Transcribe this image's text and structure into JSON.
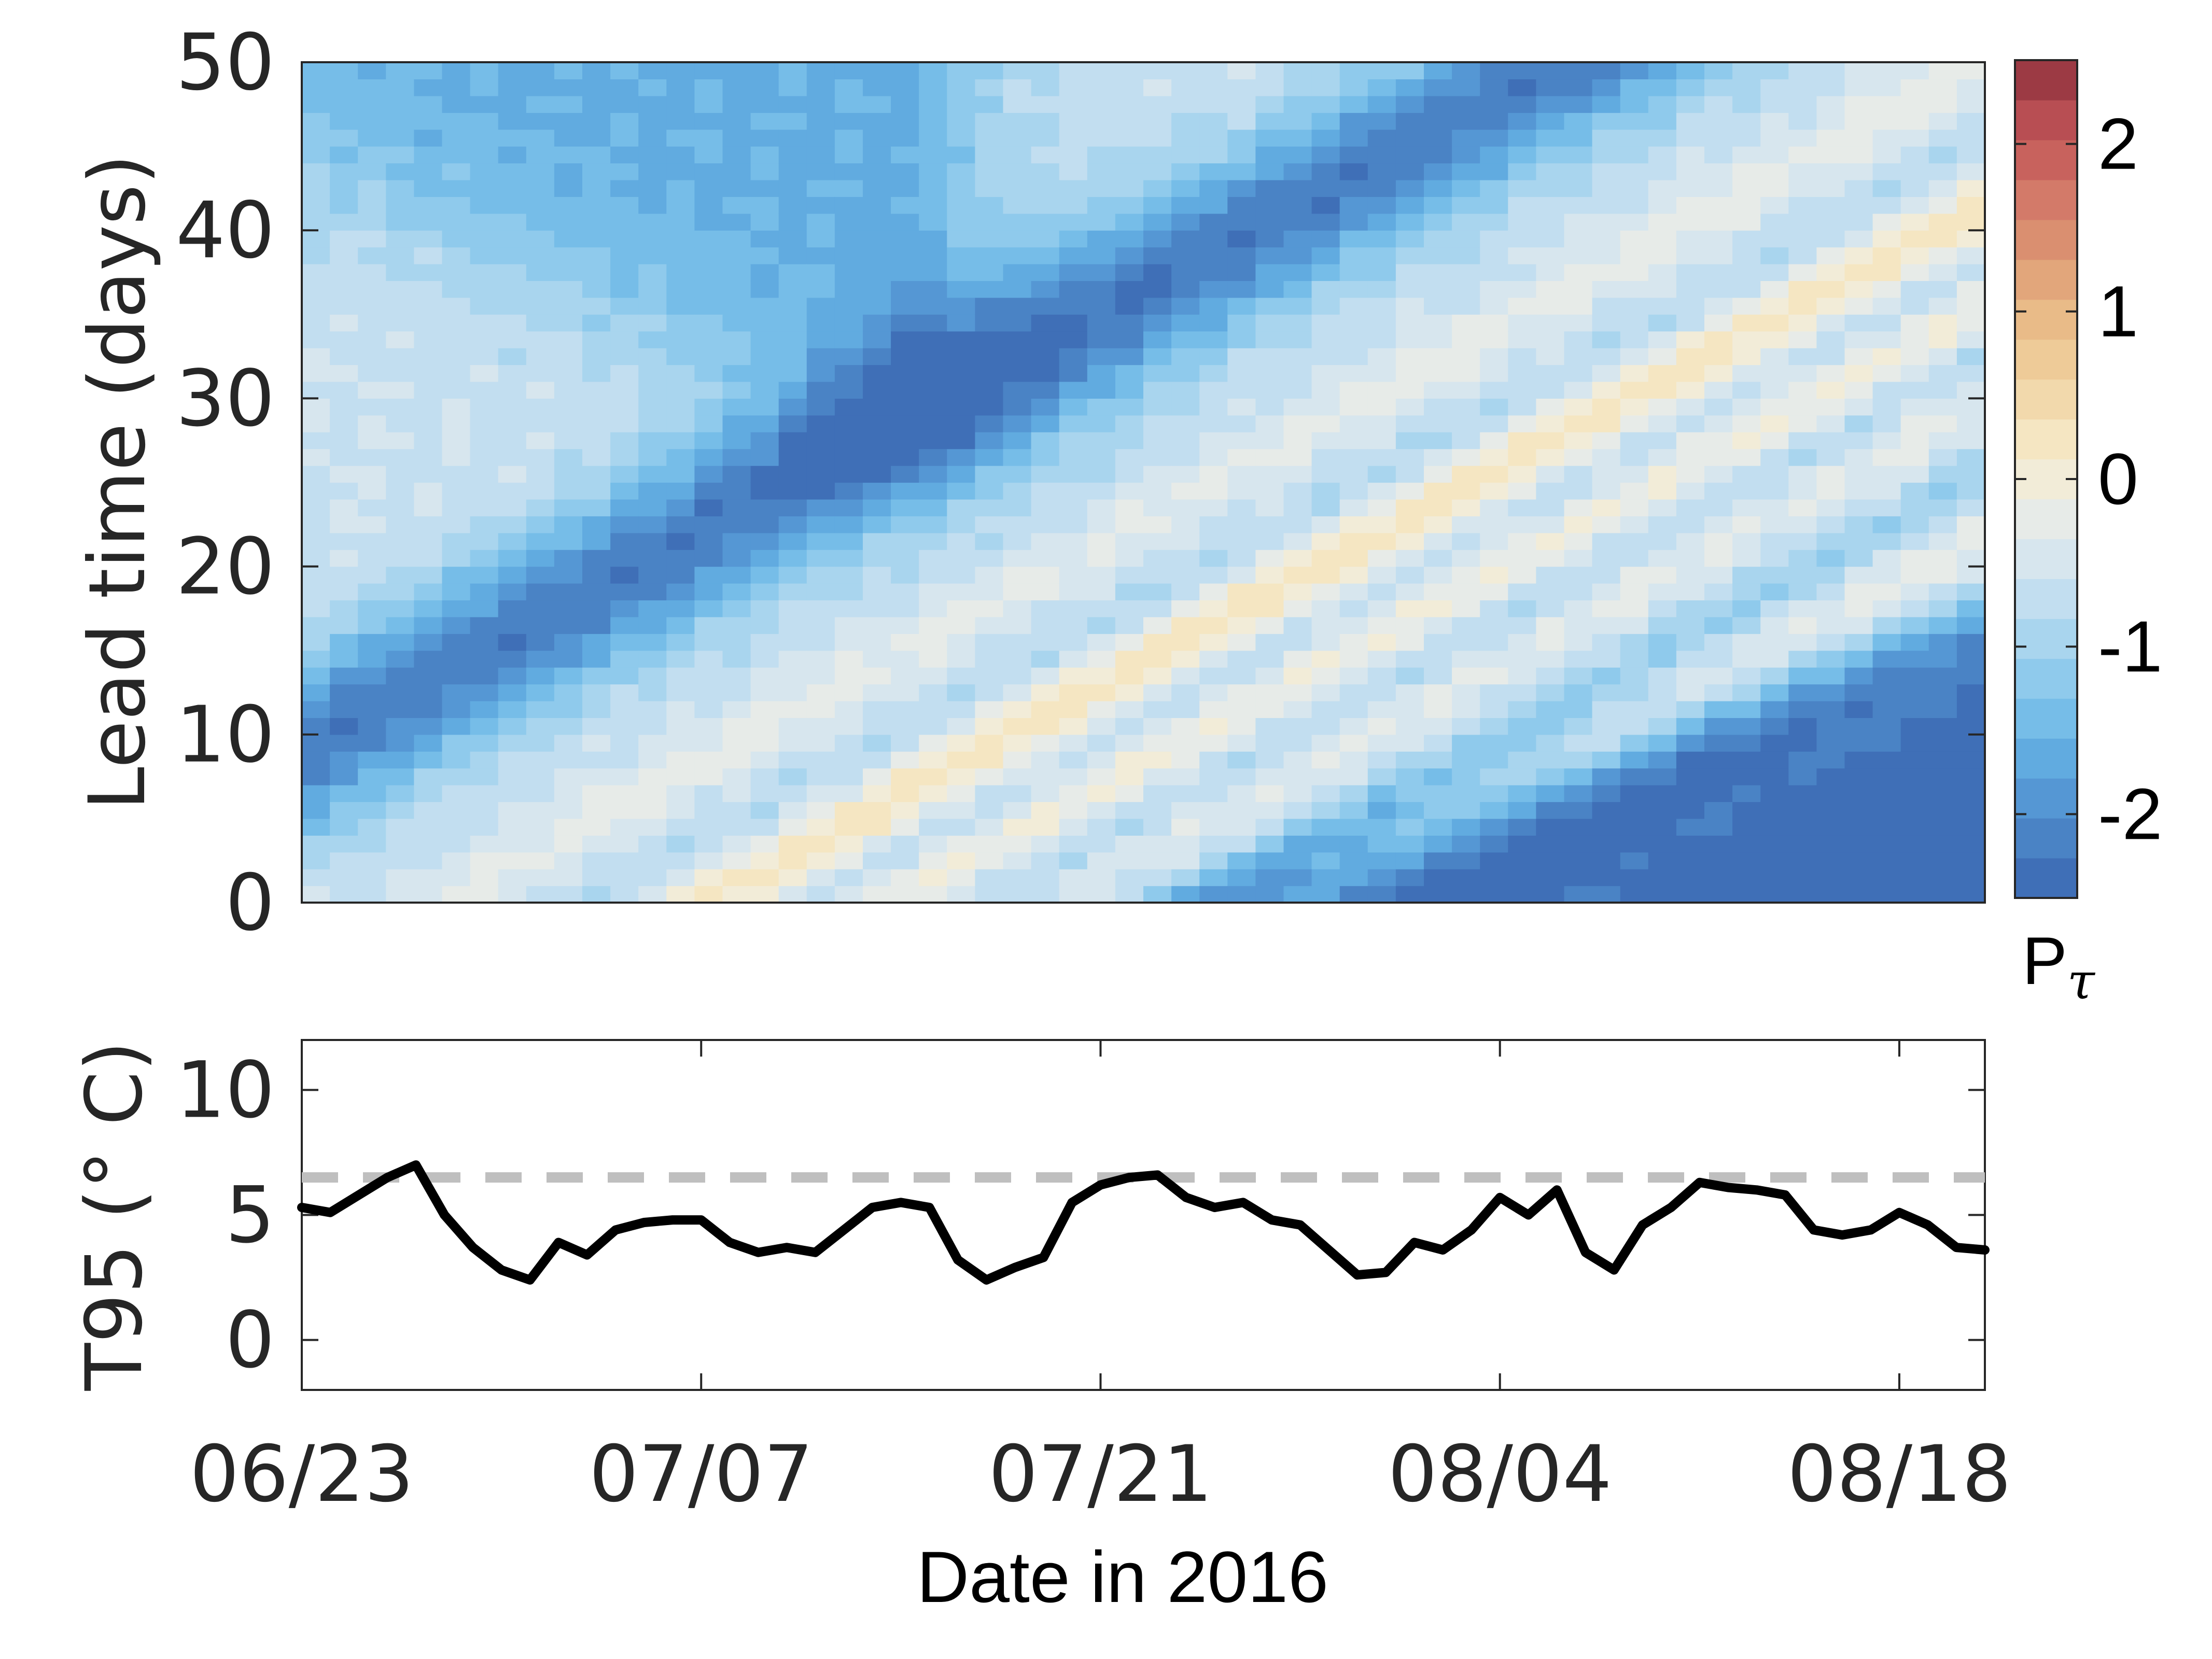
{
  "chart_data": [
    {
      "type": "heatmap",
      "title": "",
      "xlabel": "",
      "ylabel": "Lead time (days)",
      "x_tick_labels": [
        "06/23",
        "07/07",
        "07/21",
        "08/04",
        "08/18"
      ],
      "x_tick_days": [
        0,
        14,
        28,
        42,
        56
      ],
      "x_range_days": [
        0,
        59
      ],
      "ylim": [
        0,
        50
      ],
      "y_ticks": [
        0,
        10,
        20,
        30,
        40,
        50
      ],
      "grid": false,
      "description_note": "",
      "colorbar": {
        "label": "P",
        "label_subscript": "τ",
        "range": [
          -2.5,
          2.5
        ],
        "ticks": [
          -2,
          -1,
          0,
          1,
          2
        ],
        "colors": [
          "#3f6fb7",
          "#4a83c5",
          "#5597d4",
          "#61abe0",
          "#76bde8",
          "#8fcaec",
          "#a9d5ee",
          "#c2def0",
          "#d7e6ee",
          "#e7ebe8",
          "#f2ecd8",
          "#f5e6c2",
          "#f2d9ac",
          "#eecb98",
          "#e9bb88",
          "#e2a67b",
          "#da8f70",
          "#d37a69",
          "#c8625d",
          "#b84e53",
          "#9c3a44"
        ]
      },
      "field_model": {
        "description": "",
        "background": -0.6,
        "base_slope_days_per_leadday": 1.1,
        "bands": [
          {
            "center_day": 14,
            "width": 3.0,
            "amp": 0.9
          },
          {
            "center_day": 21,
            "width": 2.4,
            "amp": 0.55
          },
          {
            "center_day": 27,
            "width": 2.2,
            "amp": 0.3
          },
          {
            "center_day": 36,
            "width": 2.4,
            "amp": 0.45
          },
          {
            "center_day": 45,
            "width": 2.2,
            "amp": 0.35
          },
          {
            "center_day": 5,
            "width": 2.2,
            "amp": 0.35
          }
        ],
        "troughs": [
          {
            "center_day": -10,
            "width": 6,
            "amp": -1.6
          },
          {
            "center_day": 11,
            "width": 2.2,
            "amp": -0.45
          },
          {
            "center_day": 18,
            "width": 1.8,
            "amp": -0.35
          },
          {
            "center_day": 24,
            "width": 1.8,
            "amp": -0.35
          },
          {
            "center_day": 32,
            "width": 2.0,
            "amp": -0.5
          }
        ],
        "late_front": {
          "start_day": 32.5,
          "slope": 0.62,
          "depth": -2.0,
          "softness": 2.2
        }
      }
    },
    {
      "type": "line",
      "title": "",
      "xlabel": "Date in 2016",
      "ylabel": "T95 (° C)",
      "x_tick_labels": [
        "06/23",
        "07/07",
        "07/21",
        "08/04",
        "08/18"
      ],
      "x_tick_days": [
        0,
        14,
        28,
        42,
        56
      ],
      "x_range_days": [
        0,
        59
      ],
      "ylim": [
        -2,
        12
      ],
      "y_ticks": [
        0,
        5,
        10
      ],
      "grid": false,
      "series": [
        {
          "color": "#000000",
          "x_days": [
            0,
            1,
            2,
            3,
            4,
            5,
            6,
            7,
            8,
            9,
            10,
            11,
            12,
            13,
            14,
            15,
            16,
            17,
            18,
            19,
            20,
            21,
            22,
            23,
            24,
            25,
            26,
            27,
            28,
            29,
            30,
            31,
            32,
            33,
            34,
            35,
            36,
            37,
            38,
            39,
            40,
            41,
            42,
            43,
            44,
            45,
            46,
            47,
            48,
            49,
            50,
            51,
            52,
            53,
            54,
            55,
            56,
            57,
            58,
            59
          ],
          "values": [
            5.3,
            5.1,
            5.8,
            6.5,
            7.0,
            5.0,
            3.7,
            2.8,
            2.4,
            3.9,
            3.4,
            4.4,
            4.7,
            4.8,
            4.8,
            3.9,
            3.5,
            3.7,
            3.5,
            4.4,
            5.3,
            5.5,
            5.3,
            3.2,
            2.4,
            2.9,
            3.3,
            5.5,
            6.2,
            6.5,
            6.6,
            5.7,
            5.3,
            5.5,
            4.8,
            4.6,
            3.6,
            2.6,
            2.7,
            3.9,
            3.6,
            4.4,
            5.7,
            5.0,
            6.0,
            3.5,
            2.8,
            4.6,
            5.3,
            6.3,
            6.1,
            6.0,
            5.8,
            4.4,
            4.2,
            4.4,
            5.1,
            4.6,
            3.7,
            3.6
          ]
        },
        {
          "color": "#bfbfbf",
          "dashed": true,
          "constant": 6.5
        }
      ]
    }
  ]
}
